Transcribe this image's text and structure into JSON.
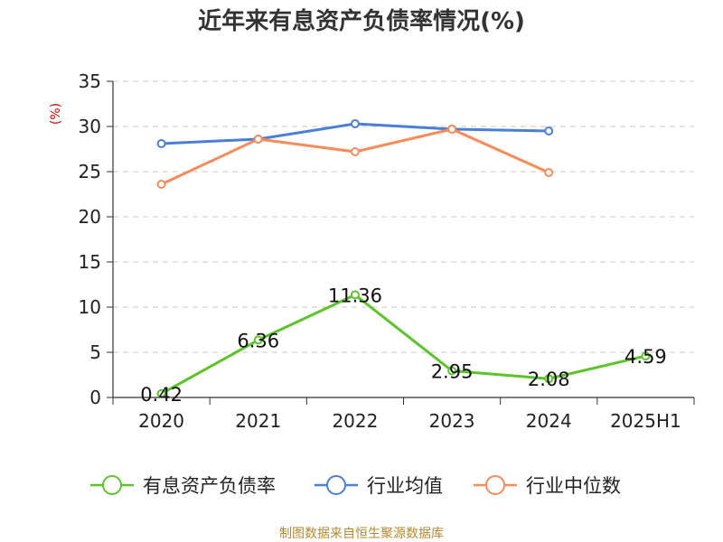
{
  "chart_data": {
    "type": "line",
    "title": "近年来有息资产负债率情况(%)",
    "ylabel": "(%)",
    "categories": [
      "2020",
      "2021",
      "2022",
      "2023",
      "2024",
      "2025H1"
    ],
    "ylim": [
      0,
      35
    ],
    "yticks": [
      0,
      5,
      10,
      15,
      20,
      25,
      30,
      35
    ],
    "grid": true,
    "legend_position": "bottom",
    "series": [
      {
        "name": "有息资产负债率",
        "color": "#5bc42b",
        "values": [
          0.42,
          6.36,
          11.36,
          2.95,
          2.08,
          4.59
        ],
        "labels": [
          "0.42",
          "6.36",
          "11.36",
          "2.95",
          "2.08",
          "4.59"
        ]
      },
      {
        "name": "行业均值",
        "color": "#4a7fd8",
        "values": [
          28.1,
          28.6,
          30.3,
          29.7,
          29.5,
          null
        ]
      },
      {
        "name": "行业中位数",
        "color": "#f78c5a",
        "values": [
          23.6,
          28.6,
          27.2,
          29.7,
          24.9,
          null
        ]
      }
    ]
  },
  "source": "制图数据来自恒生聚源数据库"
}
